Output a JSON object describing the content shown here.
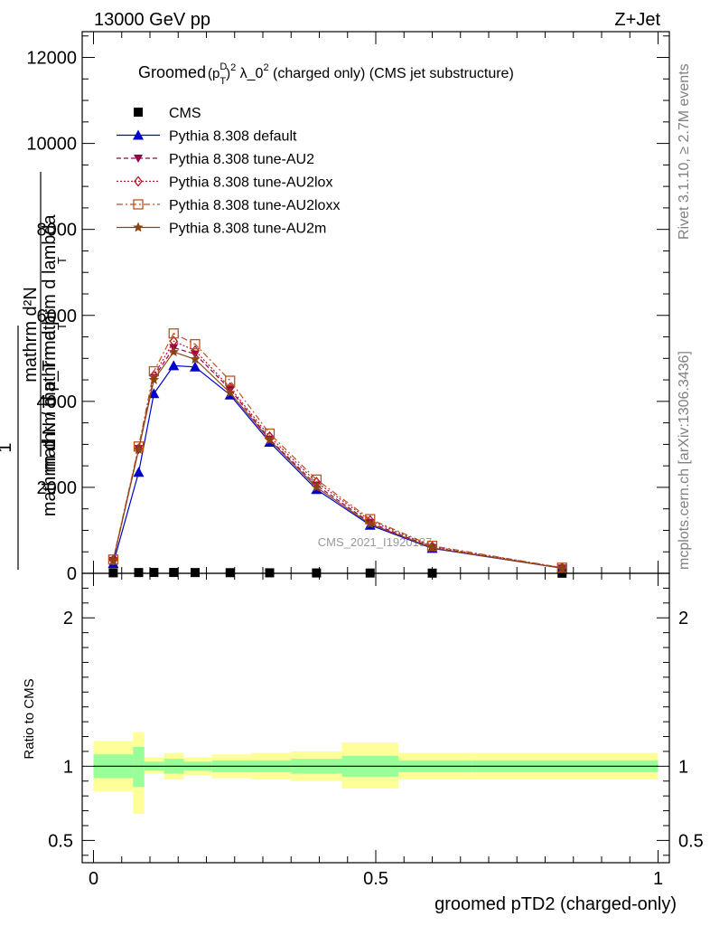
{
  "header": {
    "left": "13000 GeV pp",
    "right": "Z+Jet"
  },
  "side_labels": {
    "rivet": "Rivet 3.1.10, ≥ 2.7M events",
    "mcplots": "mcplots.cern.ch [arXiv:1306.3436]"
  },
  "chart_data": [
    {
      "type": "line",
      "title": "Groomed (p_T^D)^2 λ_0^2  (charged only) (CMS jet substructure)",
      "title_parts": {
        "prefix": "Groomed",
        "p": "(p",
        "sup_d": "D",
        "sub_t": "T",
        "close": ")",
        "sup_2": "2",
        "lambda": " λ_0",
        "sup_2b": "2",
        "suffix": "  (charged only) (CMS jet substructure)"
      },
      "ylabel": {
        "numerator": "mathrm d²N",
        "denominator": "mathrm d p_T mathrm d lambda",
        "sub_t": "T",
        "prefix_top": "1",
        "prefix_bottom": "mathrm d N / mathrm d p",
        "sub_t2": "T"
      },
      "ylim": [
        0,
        12600
      ],
      "xlim": [
        -0.02,
        1.02
      ],
      "y_ticks": [
        0,
        2000,
        4000,
        6000,
        8000,
        10000,
        12000
      ],
      "y_tick_labels": [
        "0",
        "2000",
        "4000",
        "6000",
        "8000",
        "10000",
        "12000"
      ],
      "watermark": "CMS_2021_I1920187",
      "legend_position": "top-left",
      "x": [
        0.035,
        0.08,
        0.107,
        0.142,
        0.18,
        0.242,
        0.312,
        0.395,
        0.49,
        0.6,
        0.83
      ],
      "series": [
        {
          "name": "CMS",
          "color": "#000000",
          "marker": "square-filled",
          "line": "none",
          "values": [
            12,
            18,
            20,
            20,
            18,
            15,
            12,
            9,
            7,
            5,
            3
          ]
        },
        {
          "name": "Pythia 8.308 default",
          "color": "#0000cc",
          "marker": "triangle-up-filled",
          "line": "solid",
          "values": [
            230,
            2350,
            4180,
            4830,
            4800,
            4150,
            3050,
            1950,
            1120,
            580,
            120
          ]
        },
        {
          "name": "Pythia 8.308 tune-AU2",
          "color": "#99004c",
          "marker": "triangle-down-filled",
          "line": "dashed",
          "values": [
            300,
            2900,
            4550,
            5250,
            5100,
            4280,
            3120,
            2050,
            1180,
            600,
            120
          ]
        },
        {
          "name": "Pythia 8.308 tune-AU2lox",
          "color": "#b2182b",
          "marker": "diamond-open",
          "line": "dotted",
          "values": [
            310,
            2900,
            4600,
            5400,
            5180,
            4320,
            3180,
            2120,
            1230,
            620,
            130
          ]
        },
        {
          "name": "Pythia 8.308 tune-AU2loxx",
          "color": "#c0501c",
          "marker": "square-open",
          "line": "dashdot",
          "values": [
            320,
            2950,
            4700,
            5580,
            5330,
            4480,
            3250,
            2180,
            1260,
            640,
            130
          ]
        },
        {
          "name": "Pythia 8.308 tune-AU2m",
          "color": "#8b4513",
          "marker": "star",
          "line": "solid",
          "values": [
            300,
            2880,
            4500,
            5150,
            4980,
            4200,
            3100,
            2000,
            1150,
            590,
            120
          ]
        }
      ]
    },
    {
      "type": "area",
      "ylabel": "Ratio to CMS",
      "xlabel": "groomed pTD2 (charged-only)",
      "ylim": [
        0.35,
        2.3
      ],
      "xlim": [
        -0.02,
        1.02
      ],
      "y_ticks": [
        0.5,
        1,
        2
      ],
      "y_tick_labels": [
        "0.5",
        "1",
        "2"
      ],
      "x_ticks": [
        0,
        0.5,
        1
      ],
      "x_tick_labels": [
        "0",
        "0.5",
        "1"
      ],
      "band_edges": [
        0,
        0.07,
        0.09,
        0.125,
        0.16,
        0.21,
        0.28,
        0.35,
        0.44,
        0.54,
        0.67,
        1.0
      ],
      "band_inner_low": [
        0.92,
        0.86,
        0.97,
        0.95,
        0.97,
        0.96,
        0.96,
        0.95,
        0.93,
        0.96,
        0.96
      ],
      "band_inner_high": [
        1.08,
        1.13,
        1.03,
        1.05,
        1.03,
        1.04,
        1.04,
        1.05,
        1.07,
        1.04,
        1.04
      ],
      "band_outer_low": [
        0.83,
        0.68,
        0.95,
        0.91,
        0.94,
        0.92,
        0.91,
        0.9,
        0.85,
        0.91,
        0.91
      ],
      "band_outer_high": [
        1.17,
        1.23,
        1.06,
        1.09,
        1.06,
        1.08,
        1.09,
        1.1,
        1.16,
        1.09,
        1.09
      ],
      "inner_color": "#99ff99",
      "outer_color": "#ffff99",
      "reference_line": 1
    }
  ]
}
